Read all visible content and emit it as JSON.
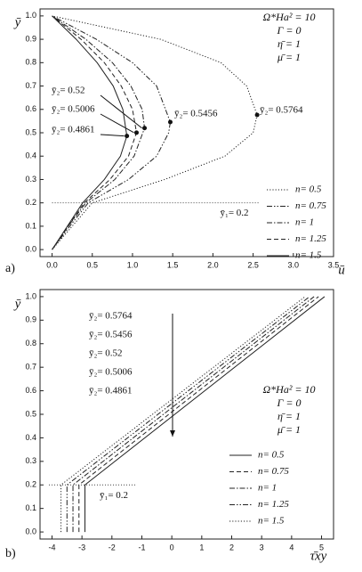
{
  "chart_data": [
    {
      "type": "line",
      "panel_label": "a)",
      "xlabel": "ū",
      "ylabel": "ȳ",
      "xlim": [
        -0.15,
        3.5
      ],
      "ylim": [
        -0.03,
        1.03
      ],
      "xticks": [
        {
          "value": 0,
          "label": "0.0"
        },
        0.5,
        {
          "value": 1,
          "label": "1.0"
        },
        1.5,
        {
          "value": 2,
          "label": "2.0"
        },
        2.5,
        {
          "value": 3,
          "label": "3.0"
        },
        3.5
      ],
      "yticks": [
        {
          "value": 0,
          "label": "0.0"
        },
        0.1,
        0.2,
        0.3,
        0.4,
        0.5,
        0.6,
        0.7,
        0.8,
        0.9,
        {
          "value": 1,
          "label": "1.0"
        }
      ],
      "params": [
        "Ω*Ha² = 10",
        "Γ = 0",
        "η̄ = 1",
        "μ̄ = 1"
      ],
      "ref_line": {
        "y": 0.2,
        "label": "ȳ₁= 0.2"
      },
      "annotations": [
        "ȳ₂= 0.5764",
        "ȳ₂= 0.5456",
        "ȳ₂= 0.52",
        "ȳ₂= 0.5006",
        "ȳ₂= 0.4861"
      ],
      "series": [
        {
          "name": "n= 0.5",
          "style": "dotted",
          "color": "#222",
          "y": [
            0,
            0.1,
            0.2,
            0.3,
            0.4,
            0.5,
            0.5764,
            0.7,
            0.8,
            0.9,
            1.0
          ],
          "x": [
            0,
            0.25,
            0.5,
            1.4,
            2.15,
            2.5,
            2.55,
            2.42,
            2.1,
            1.35,
            0
          ]
        },
        {
          "name": "n= 0.75",
          "style": "dash-dot-dot",
          "color": "#222",
          "y": [
            0,
            0.1,
            0.2,
            0.3,
            0.4,
            0.5,
            0.5456,
            0.7,
            0.8,
            0.9,
            1.0
          ],
          "x": [
            0,
            0.22,
            0.45,
            0.95,
            1.3,
            1.45,
            1.47,
            1.3,
            1.0,
            0.55,
            0
          ]
        },
        {
          "name": "n= 1",
          "style": "dash-dot",
          "color": "#222",
          "y": [
            0,
            0.1,
            0.2,
            0.3,
            0.4,
            0.52,
            0.6,
            0.7,
            0.8,
            0.9,
            1.0
          ],
          "x": [
            0,
            0.2,
            0.42,
            0.78,
            1.02,
            1.15,
            1.12,
            0.98,
            0.75,
            0.42,
            0
          ]
        },
        {
          "name": "n= 1.25",
          "style": "dashed",
          "color": "#222",
          "y": [
            0,
            0.1,
            0.2,
            0.3,
            0.4,
            0.5006,
            0.6,
            0.7,
            0.8,
            0.9,
            1.0
          ],
          "x": [
            0,
            0.2,
            0.4,
            0.72,
            0.95,
            1.05,
            1.0,
            0.86,
            0.65,
            0.36,
            0
          ]
        },
        {
          "name": "n= 1.5",
          "style": "solid",
          "color": "#222",
          "y": [
            0,
            0.1,
            0.2,
            0.3,
            0.4,
            0.4861,
            0.6,
            0.7,
            0.8,
            0.9,
            1.0
          ],
          "x": [
            0,
            0.19,
            0.38,
            0.65,
            0.85,
            0.93,
            0.88,
            0.76,
            0.56,
            0.3,
            0
          ]
        }
      ]
    },
    {
      "type": "line",
      "panel_label": "b)",
      "xlabel": "τ̄xy",
      "ylabel": "ȳ",
      "xlim": [
        -4.4,
        5.4
      ],
      "ylim": [
        -0.03,
        1.03
      ],
      "xticks": [
        -4,
        -3,
        -2,
        -1,
        0,
        1,
        2,
        3,
        4,
        5
      ],
      "yticks": [
        {
          "value": 0,
          "label": "0.0"
        },
        0.1,
        0.2,
        0.3,
        0.4,
        0.5,
        0.6,
        0.7,
        0.8,
        0.9,
        {
          "value": 1,
          "label": "1.0"
        }
      ],
      "params": [
        "Ω*Ha² = 10",
        "Γ = 0",
        "η̄ = 1",
        "μ̄ = 1"
      ],
      "ref_line": {
        "y": 0.2,
        "label": "ȳ₁= 0.2"
      },
      "annotations": [
        "ȳ₂= 0.5764",
        "ȳ₂= 0.5456",
        "ȳ₂= 0.52",
        "ȳ₂= 0.5006",
        "ȳ₂= 0.4861"
      ],
      "series": [
        {
          "name": "n= 0.5",
          "style": "solid",
          "color": "#222",
          "y": [
            0,
            0.2,
            1.0
          ],
          "x": [
            -2.9,
            -2.9,
            5.1
          ]
        },
        {
          "name": "n= 0.75",
          "style": "dashed",
          "color": "#222",
          "y": [
            0,
            0.2,
            1.0
          ],
          "x": [
            -3.1,
            -3.1,
            4.9
          ]
        },
        {
          "name": "n= 1",
          "style": "dash-dot",
          "color": "#222",
          "y": [
            0,
            0.2,
            1.0
          ],
          "x": [
            -3.3,
            -3.3,
            4.75
          ]
        },
        {
          "name": "n= 1.25",
          "style": "dash-dot-dot",
          "color": "#222",
          "y": [
            0,
            0.2,
            1.0
          ],
          "x": [
            -3.5,
            -3.5,
            4.6
          ]
        },
        {
          "name": "n= 1.5",
          "style": "dotted",
          "color": "#222",
          "y": [
            0,
            0.2,
            1.0
          ],
          "x": [
            -3.7,
            -3.7,
            4.45
          ]
        }
      ]
    }
  ]
}
